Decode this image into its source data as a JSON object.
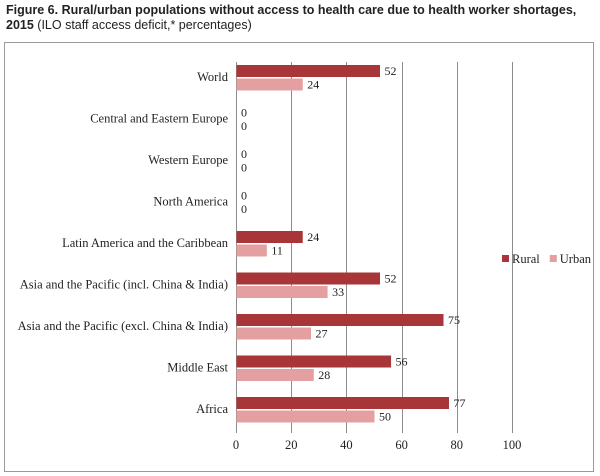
{
  "caption": {
    "lead": "Figure 6.  Rural/urban populations without access to health care due to health worker shortages, 2015",
    "rest": " (ILO staff access deficit,* percentages)"
  },
  "colors": {
    "rural": "#a83638",
    "urban": "#e4a0a0",
    "grid": "#8c8c8c"
  },
  "chart_data": {
    "type": "bar",
    "orientation": "horizontal",
    "categories": [
      "World",
      "Central and Eastern Europe",
      "Western Europe",
      "North America",
      "Latin America and the Caribbean",
      "Asia and the Pacific (incl. China & India)",
      "Asia and the Pacific (excl. China & India)",
      "Middle East",
      "Africa"
    ],
    "series": [
      {
        "name": "Rural",
        "values": [
          52,
          0,
          0,
          0,
          24,
          52,
          75,
          56,
          77
        ]
      },
      {
        "name": "Urban",
        "values": [
          24,
          0,
          0,
          0,
          11,
          33,
          27,
          28,
          50
        ]
      }
    ],
    "xlim": [
      0,
      100
    ],
    "xticks": [
      0,
      20,
      40,
      60,
      80,
      100
    ],
    "grid": "vertical",
    "legend": "right",
    "data_labels": true
  }
}
